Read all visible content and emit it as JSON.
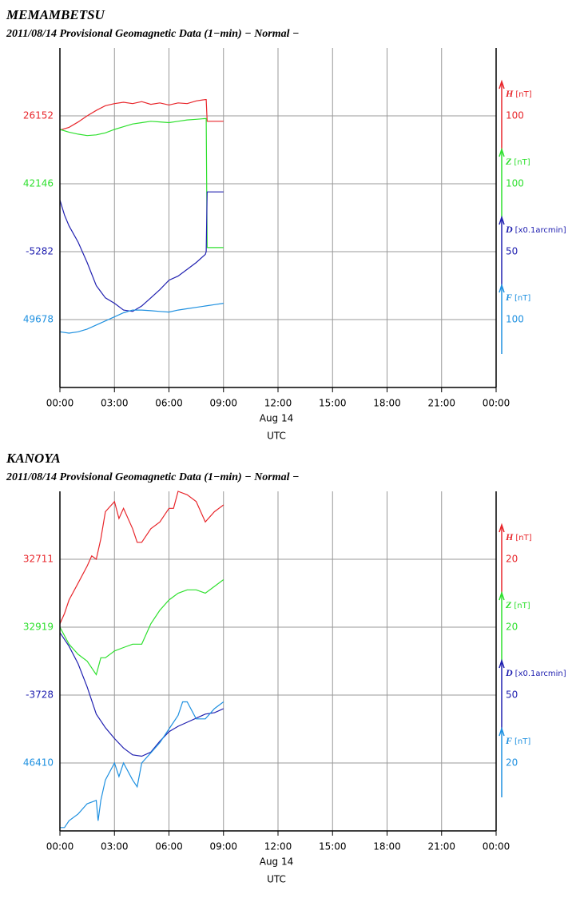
{
  "chart_data": [
    {
      "type": "line",
      "title": "MEMAMBETSU",
      "subtitle": "2011/08/14  Provisional Geomagnetic Data (1−min)  − Normal −",
      "xlim": [
        0,
        24
      ],
      "xticks": [
        {
          "value": 0,
          "label": "00:00"
        },
        {
          "value": 3,
          "label": "03:00"
        },
        {
          "value": 6,
          "label": "06:00"
        },
        {
          "value": 9,
          "label": "09:00"
        },
        {
          "value": 12,
          "label": "12:00"
        },
        {
          "value": 15,
          "label": "15:00"
        },
        {
          "value": 18,
          "label": "18:00"
        },
        {
          "value": 21,
          "label": "21:00"
        },
        {
          "value": 24,
          "label": "00:00"
        }
      ],
      "xlabel": "Aug 14",
      "xunit": "UTC",
      "series": [
        {
          "name": "H",
          "unit": "[nT]",
          "color": "#e8262b",
          "ref": 26152,
          "scale": 100,
          "x": [
            0,
            0.5,
            1,
            1.5,
            2,
            2.5,
            3,
            3.5,
            4,
            4.5,
            5,
            5.5,
            6,
            6.5,
            7,
            7.5,
            8,
            8.05,
            8.1,
            9
          ],
          "values": [
            26131,
            26135,
            26143,
            26152,
            26160,
            26167,
            26170,
            26172,
            26170,
            26173,
            26169,
            26171,
            26168,
            26171,
            26170,
            26174,
            26176,
            26176,
            26144,
            26144
          ]
        },
        {
          "name": "Z",
          "unit": "[nT]",
          "color": "#2ee02e",
          "ref": 42146,
          "scale": 100,
          "x": [
            0,
            0.5,
            1,
            1.5,
            2,
            2.5,
            3,
            3.5,
            4,
            4.5,
            5,
            5.5,
            6,
            6.5,
            7,
            7.5,
            8,
            8.05,
            8.1,
            9
          ],
          "values": [
            42226,
            42222,
            42219,
            42217,
            42218,
            42221,
            42226,
            42230,
            42234,
            42236,
            42238,
            42237,
            42236,
            42238,
            42240,
            42241,
            42242,
            42242,
            42052,
            42052
          ]
        },
        {
          "name": "D",
          "unit": "[x0.1arcmin]",
          "color": "#2020b0",
          "ref": -5282,
          "scale": 50,
          "x": [
            0,
            0.25,
            0.5,
            1,
            1.5,
            2,
            2.5,
            3,
            3.5,
            4,
            4.5,
            5,
            5.5,
            6,
            6.5,
            7,
            7.5,
            8,
            8.05,
            8.1,
            9
          ],
          "values": [
            -5244,
            -5255,
            -5263,
            -5275,
            -5290,
            -5307,
            -5316,
            -5320,
            -5325,
            -5326,
            -5322,
            -5316,
            -5310,
            -5303,
            -5300,
            -5295,
            -5290,
            -5284,
            -5282,
            -5238,
            -5238
          ]
        },
        {
          "name": "F",
          "unit": "[nT]",
          "color": "#1e90e0",
          "ref": 49678,
          "scale": 100,
          "x": [
            0,
            0.5,
            1,
            1.5,
            2,
            2.5,
            3,
            3.5,
            4,
            4.5,
            5,
            5.5,
            6,
            6.5,
            7,
            7.5,
            8,
            8.5,
            9
          ],
          "values": [
            49660,
            49658,
            49660,
            49664,
            49670,
            49676,
            49682,
            49688,
            49692,
            49692,
            49691,
            49690,
            49689,
            49692,
            49694,
            49696,
            49698,
            49700,
            49702
          ]
        }
      ]
    },
    {
      "type": "line",
      "title": "KANOYA",
      "subtitle": "2011/08/14  Provisional Geomagnetic Data (1−min)  − Normal −",
      "xlim": [
        0,
        24
      ],
      "xticks": [
        {
          "value": 0,
          "label": "00:00"
        },
        {
          "value": 3,
          "label": "03:00"
        },
        {
          "value": 6,
          "label": "06:00"
        },
        {
          "value": 9,
          "label": "09:00"
        },
        {
          "value": 12,
          "label": "12:00"
        },
        {
          "value": 15,
          "label": "15:00"
        },
        {
          "value": 18,
          "label": "18:00"
        },
        {
          "value": 21,
          "label": "21:00"
        },
        {
          "value": 24,
          "label": "00:00"
        }
      ],
      "xlabel": "Aug 14",
      "xunit": "UTC",
      "series": [
        {
          "name": "H",
          "unit": "[nT]",
          "color": "#e8262b",
          "ref": 32711,
          "scale": 20,
          "x": [
            0,
            0.25,
            0.5,
            1,
            1.5,
            1.75,
            2,
            2.25,
            2.5,
            3,
            3.25,
            3.5,
            4,
            4.25,
            4.5,
            5,
            5.5,
            6,
            6.25,
            6.5,
            7,
            7.5,
            8,
            8.5,
            9
          ],
          "values": [
            32692,
            32695,
            32699,
            32704,
            32709,
            32712,
            32711,
            32717,
            32725,
            32728,
            32723,
            32726,
            32720,
            32716,
            32716,
            32720,
            32722,
            32726,
            32726,
            32731,
            32730,
            32728,
            32722,
            32725,
            32727
          ]
        },
        {
          "name": "Z",
          "unit": "[nT]",
          "color": "#2ee02e",
          "ref": 32919,
          "scale": 20,
          "x": [
            0,
            0.5,
            1,
            1.5,
            2,
            2.25,
            2.5,
            3,
            3.5,
            4,
            4.5,
            5,
            5.5,
            6,
            6.5,
            7,
            7.5,
            8,
            8.5,
            9
          ],
          "values": [
            32919,
            32914,
            32911,
            32909,
            32905,
            32910,
            32910,
            32912,
            32913,
            32914,
            32914,
            32920,
            32924,
            32927,
            32929,
            32930,
            32930,
            32929,
            32931,
            32933
          ]
        },
        {
          "name": "D",
          "unit": "[x0.1arcmin]",
          "color": "#2020b0",
          "ref": -3728,
          "scale": 50,
          "x": [
            0,
            0.5,
            1,
            1.5,
            2,
            2.5,
            3,
            3.5,
            4,
            4.5,
            5,
            5.5,
            6,
            6.5,
            7,
            7.5,
            8,
            8.5,
            9
          ],
          "values": [
            -3682,
            -3692,
            -3705,
            -3722,
            -3742,
            -3752,
            -3760,
            -3767,
            -3772,
            -3773,
            -3770,
            -3762,
            -3755,
            -3751,
            -3748,
            -3745,
            -3742,
            -3741,
            -3738
          ]
        },
        {
          "name": "F",
          "unit": "[nT]",
          "color": "#1e90e0",
          "ref": 46410,
          "scale": 20,
          "x": [
            0,
            0.25,
            0.5,
            1,
            1.5,
            2,
            2.1,
            2.25,
            2.5,
            3,
            3.25,
            3.5,
            4,
            4.25,
            4.5,
            5,
            5.5,
            6,
            6.5,
            6.75,
            7,
            7.5,
            8,
            8.5,
            9
          ],
          "values": [
            46391,
            46391,
            46393,
            46395,
            46398,
            46399,
            46393,
            46399,
            46405,
            46410,
            46406,
            46410,
            46405,
            46403,
            46410,
            46413,
            46416,
            46420,
            46424,
            46428,
            46428,
            46423,
            46423,
            46426,
            46428
          ]
        }
      ]
    }
  ]
}
